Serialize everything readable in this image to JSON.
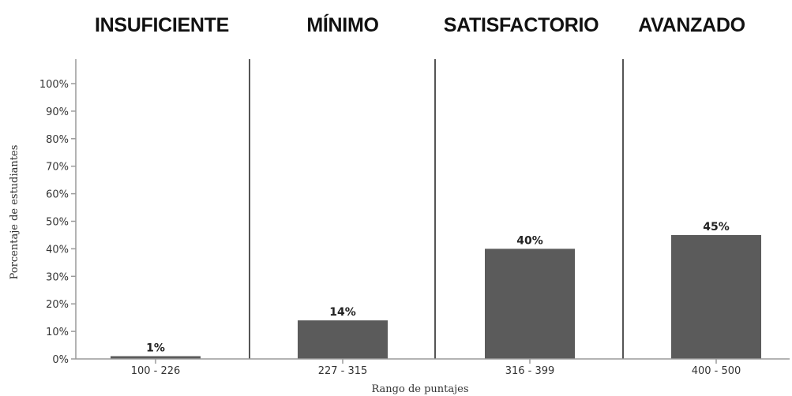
{
  "chart_data": {
    "type": "bar",
    "categories": [
      "100 - 226",
      "227 - 315",
      "316 - 399",
      "400 - 500"
    ],
    "values": [
      1,
      14,
      40,
      45
    ],
    "value_labels": [
      "1%",
      "14%",
      "40%",
      "45%"
    ],
    "level_titles": [
      "INSUFICIENTE",
      "MÍNIMO",
      "SATISFACTORIO",
      "AVANZADO"
    ],
    "xlabel": "Rango de puntajes",
    "ylabel": "Porcentaje de estudiantes",
    "ylim": [
      0,
      100
    ],
    "yticks": [
      0,
      10,
      20,
      30,
      40,
      50,
      60,
      70,
      80,
      90,
      100
    ],
    "ytick_labels": [
      "0%",
      "10%",
      "20%",
      "30%",
      "40%",
      "50%",
      "60%",
      "70%",
      "80%",
      "90%",
      "100%"
    ],
    "grid": false,
    "bar_color": "#5b5b5b",
    "divider_color": "#555555",
    "axis_color": "#9a9a9a"
  }
}
